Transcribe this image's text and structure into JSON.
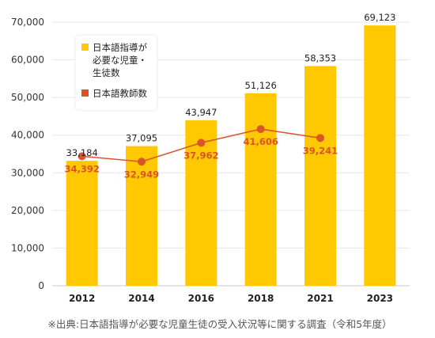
{
  "chart_data": {
    "type": "bar",
    "categories": [
      "2012",
      "2014",
      "2016",
      "2018",
      "2021",
      "2023"
    ],
    "series": [
      {
        "name": "日本語指導が必要な児童・生徒数",
        "type": "bar",
        "color": "#ffc800",
        "values": [
          33184,
          37095,
          43947,
          51126,
          58353,
          69123
        ]
      },
      {
        "name": "日本語教師数",
        "type": "line",
        "color": "#d9542a",
        "values": [
          34392,
          32949,
          37962,
          41606,
          39241,
          null
        ]
      }
    ],
    "legend_lines": [
      [
        "日本語指導が",
        "必要な児童・",
        "生徒数"
      ],
      [
        "日本語教師数"
      ]
    ],
    "yticks": [
      "0",
      "10,000",
      "20,000",
      "30,000",
      "40,000",
      "50,000",
      "60,000",
      "70,000"
    ],
    "ylim": [
      0,
      70000
    ],
    "grid": true,
    "legend_position": "top-left",
    "bar_labels": [
      "33,184",
      "37,095",
      "43,947",
      "51,126",
      "58,353",
      "69,123"
    ],
    "line_labels": [
      "34,392",
      "32,949",
      "37,962",
      "41,606",
      "39,241"
    ],
    "source_note": "※出典:日本語指導が必要な児童生徒の受入状況等に関する調査（令和5年度）"
  }
}
